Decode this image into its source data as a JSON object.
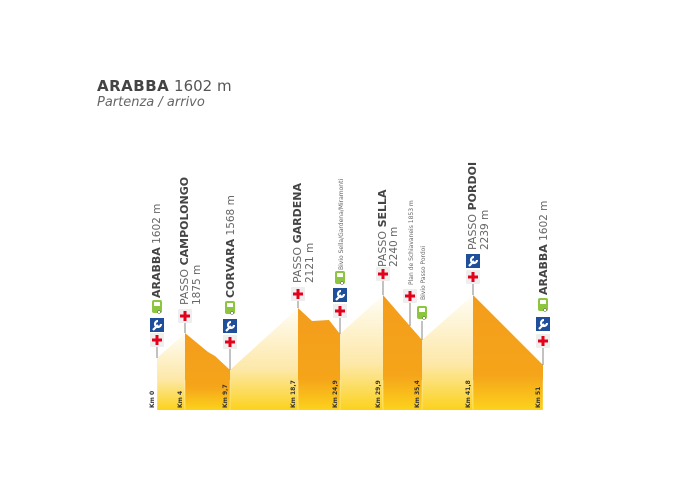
{
  "header": {
    "title_bold": "ARABBA",
    "title_elev": "1602 m",
    "subtitle": "Partenza / arrivo"
  },
  "colors": {
    "descent": "#f39c1c",
    "ascent_top": "#fff8e6",
    "base": "#fcd21c",
    "cross": "#e3001b",
    "wrench_bg": "#1f4f9a",
    "bus": "#8cc63f"
  },
  "km_labels": [
    "Km 0",
    "Km 4",
    "Km 9,7",
    "Km 18,7",
    "Km 24,9",
    "Km 29,9",
    "Km 35,4",
    "Km 41,8",
    "Km 51"
  ],
  "points": [
    {
      "pre": "",
      "bold": "ARABBA",
      "elev": "1602 m",
      "services": [
        "first-aid",
        "repair",
        "bus"
      ]
    },
    {
      "pre": "PASSO ",
      "bold": "CAMPOLONGO",
      "elev": "1875 m",
      "services": [
        "first-aid"
      ]
    },
    {
      "pre": "",
      "bold": "CORVARA",
      "elev": "1568 m",
      "services": [
        "first-aid",
        "repair",
        "bus"
      ]
    },
    {
      "pre": "PASSO ",
      "bold": "GARDENA",
      "elev": "2121 m",
      "services": [
        "first-aid"
      ]
    },
    {
      "label": "Bivio Sella/Gardena/Miramonti",
      "services": [
        "first-aid",
        "repair",
        "bus"
      ]
    },
    {
      "pre": "PASSO ",
      "bold": "SELLA",
      "elev": "2240 m",
      "services": [
        "first-aid"
      ]
    },
    {
      "label": "Plan de Schiavaneis 1853 m",
      "services": [
        "first-aid"
      ]
    },
    {
      "label": "Bivio Passo Pordoi",
      "services": [
        "bus"
      ]
    },
    {
      "pre": "PASSO ",
      "bold": "PORDOI",
      "elev": "2239 m",
      "services": [
        "first-aid",
        "repair"
      ]
    },
    {
      "pre": "",
      "bold": "ARABBA",
      "elev": "1602 m",
      "services": [
        "first-aid",
        "repair",
        "bus"
      ]
    }
  ]
}
